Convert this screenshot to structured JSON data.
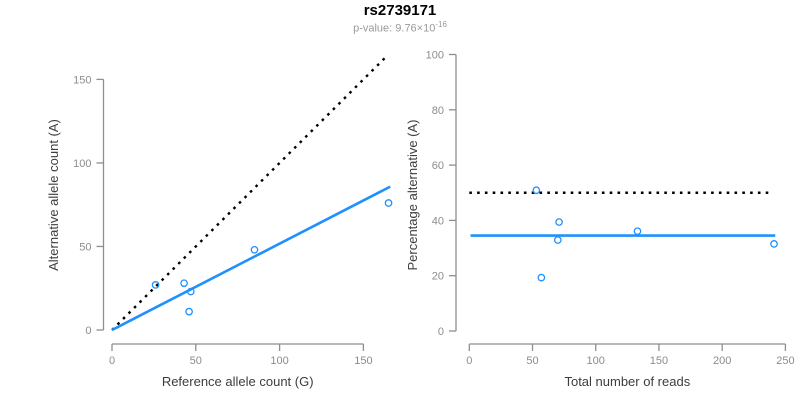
{
  "header": {
    "title": "rs2739171",
    "subtitle": {
      "text": "p-value: 9.76×10",
      "superscript": "-16"
    }
  },
  "colors": {
    "accent_blue": "#1E90FF",
    "line_black": "#000000",
    "axis_gray": "#8E8E8E",
    "tick_label_gray": "#8C8C8C",
    "axis_title_color": "#3D3D3D",
    "subtitle_gray": "#9A9A9A",
    "title_color": "#000000"
  },
  "chart_data": [
    {
      "type": "scatter",
      "panel": "allele-count-plot",
      "title": "",
      "xlabel": "Reference allele count (G)",
      "ylabel": "Alternative allele count (A)",
      "xlim": [
        0,
        168
      ],
      "ylim": [
        0,
        165
      ],
      "xticks": [
        0,
        50,
        100,
        150
      ],
      "yticks": [
        0,
        50,
        100,
        150
      ],
      "grid": false,
      "legend": null,
      "points": [
        {
          "x": 26,
          "y": 27
        },
        {
          "x": 43,
          "y": 28
        },
        {
          "x": 47,
          "y": 23
        },
        {
          "x": 46,
          "y": 11
        },
        {
          "x": 85,
          "y": 48
        },
        {
          "x": 165,
          "y": 76
        }
      ],
      "lines": [
        {
          "name": "identity-line",
          "style": "dotted",
          "color": "black",
          "x1": 0,
          "y1": 0,
          "x2": 164.5,
          "y2": 164.5
        },
        {
          "name": "regression-line",
          "style": "solid",
          "color": "blue",
          "x1": 0,
          "y1": 0,
          "x2": 166,
          "y2": 85.8
        }
      ]
    },
    {
      "type": "scatter",
      "panel": "percentage-plot",
      "title": "",
      "xlabel": "Total number of reads",
      "ylabel": "Percentage alternative (A)",
      "xlim": [
        0,
        250
      ],
      "ylim": [
        0,
        100
      ],
      "xticks": [
        0,
        50,
        100,
        150,
        200,
        250
      ],
      "yticks": [
        0,
        20,
        40,
        60,
        80,
        100
      ],
      "grid": false,
      "legend": null,
      "points": [
        {
          "x": 53,
          "y": 50.9
        },
        {
          "x": 71,
          "y": 39.4
        },
        {
          "x": 70,
          "y": 32.9
        },
        {
          "x": 57,
          "y": 19.3
        },
        {
          "x": 133,
          "y": 36.1
        },
        {
          "x": 241,
          "y": 31.5
        }
      ],
      "lines": [
        {
          "name": "expected-50-percent-line",
          "style": "dotted",
          "color": "black",
          "x1": 0,
          "y1": 50,
          "x2": 238,
          "y2": 50
        },
        {
          "name": "mean-percentage-line",
          "style": "solid",
          "color": "blue",
          "x1": 1,
          "y1": 34.5,
          "x2": 242,
          "y2": 34.5
        }
      ]
    }
  ]
}
